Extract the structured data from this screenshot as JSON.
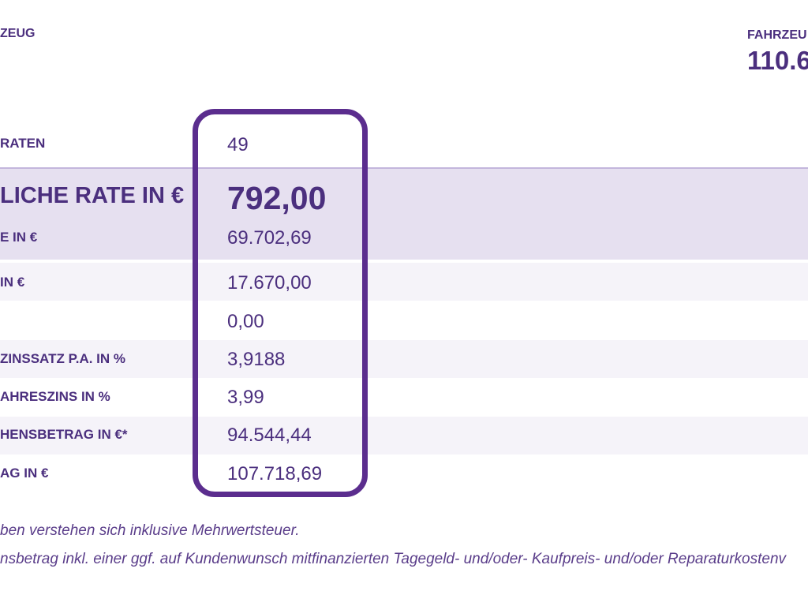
{
  "header": {
    "left_label": "ZEUG",
    "right_label": "FAHRZEU",
    "right_value": "110.6"
  },
  "rows": [
    {
      "label": "RATEN",
      "value": "49"
    },
    {
      "label": "LICHE RATE IN €",
      "value": "792,00"
    },
    {
      "label": "E IN €",
      "value": "69.702,69"
    },
    {
      "label": "IN €",
      "value": "17.670,00"
    },
    {
      "label": "",
      "value": "0,00"
    },
    {
      "label": "ZINSSATZ P.A. IN %",
      "value": "3,9188"
    },
    {
      "label": "AHRESZINS IN %",
      "value": "3,99"
    },
    {
      "label": "HENSBETRAG IN €*",
      "value": "94.544,44"
    },
    {
      "label": "AG IN €",
      "value": "107.718,69"
    }
  ],
  "footnotes": [
    "ben verstehen sich inklusive Mehrwertsteuer.",
    "nsbetrag inkl. einer ggf. auf Kundenwunsch mitfinanzierten Tagegeld- und/oder- Kaufpreis- und/oder Reparaturkostenv"
  ],
  "colors": {
    "text": "#4b2f7e",
    "highlight_border": "#5b2d8e",
    "band_main": "#e6e0f0",
    "band_stripe": "#f5f3f9"
  }
}
